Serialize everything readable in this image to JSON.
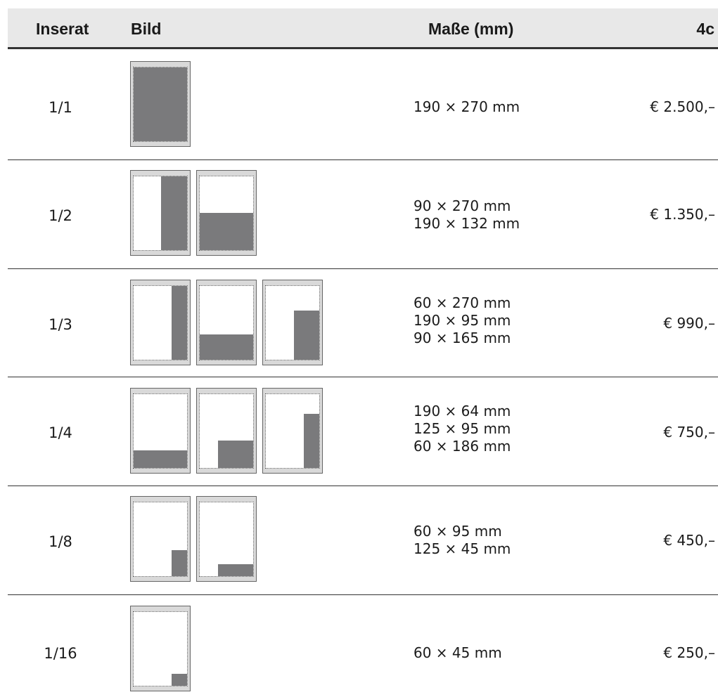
{
  "table": {
    "headers": {
      "inserat": "Inserat",
      "bild": "Bild",
      "masse": "Maße (mm)",
      "price": "4c"
    },
    "rows": [
      {
        "label": "1/1",
        "dims": [
          "190 × 270 mm"
        ],
        "price": "€ 2.500,–"
      },
      {
        "label": "1/2",
        "dims": [
          "90 × 270 mm",
          "190 × 132 mm"
        ],
        "price": "€ 1.350,–"
      },
      {
        "label": "1/3",
        "dims": [
          "60 × 270 mm",
          "190 × 95 mm",
          "90 × 165 mm"
        ],
        "price": "€ 990,–"
      },
      {
        "label": "1/4",
        "dims": [
          "190 × 64 mm",
          "125 × 95 mm",
          "60 × 186 mm"
        ],
        "price": "€ 750,–"
      },
      {
        "label": "1/8",
        "dims": [
          "60 × 95 mm",
          "125 × 45 mm"
        ],
        "price": "€ 450,–"
      },
      {
        "label": "1/16",
        "dims": [
          "60 × 45 mm"
        ],
        "price": "€ 250,–"
      }
    ]
  },
  "colors": {
    "header_bg": "#e8e8e8",
    "ad_fill": "#7a7a7c",
    "thumb_frame": "#d9d9d9",
    "rule": "#333333"
  }
}
